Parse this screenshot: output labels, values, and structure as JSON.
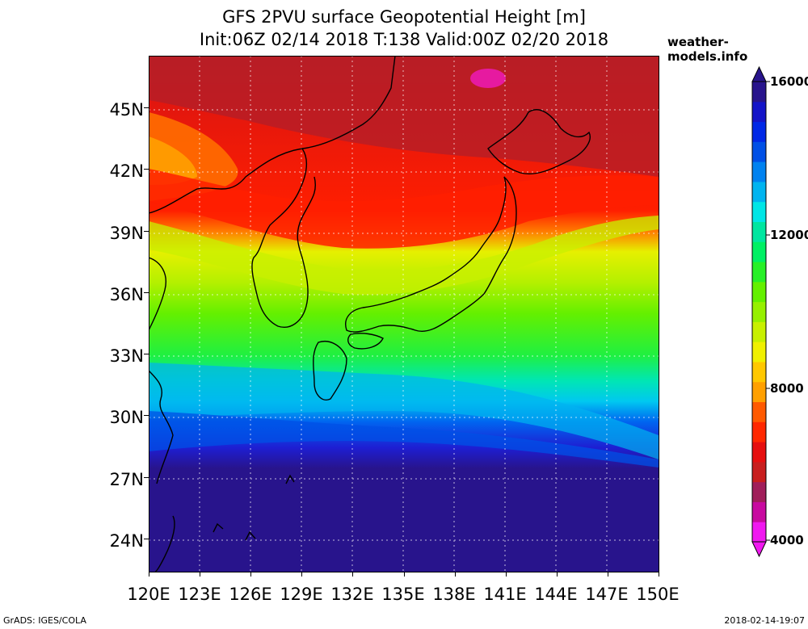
{
  "header": {
    "title_line1": "GFS 2PVU surface Geopotential Height [m]",
    "title_line2": "Init:06Z 02/14 2018 T:138 Valid:00Z 02/20 2018",
    "site": "weather-models.info"
  },
  "map": {
    "lat_labels": [
      "45N",
      "42N",
      "39N",
      "36N",
      "33N",
      "30N",
      "27N",
      "24N"
    ],
    "lon_labels": [
      "120E",
      "123E",
      "126E",
      "129E",
      "132E",
      "135E",
      "138E",
      "141E",
      "144E",
      "147E",
      "150E"
    ]
  },
  "colorbar": {
    "labels": [
      "16000",
      "12000",
      "8000",
      "4000"
    ],
    "colors": [
      "#f018f0",
      "#c80aa0",
      "#a01e5a",
      "#c81e1e",
      "#e60f0f",
      "#ff2800",
      "#ff5a00",
      "#ffa000",
      "#ffc800",
      "#f0f000",
      "#c8f000",
      "#96f000",
      "#64f000",
      "#28f028",
      "#00f064",
      "#00e6a0",
      "#00e6e6",
      "#00b4f0",
      "#0082f0",
      "#0050e6",
      "#0028e6",
      "#1414c8",
      "#28148c"
    ]
  },
  "footer": {
    "credit": "GrADS: IGES/COLA",
    "timestamp": "2018-02-14-19:07"
  }
}
